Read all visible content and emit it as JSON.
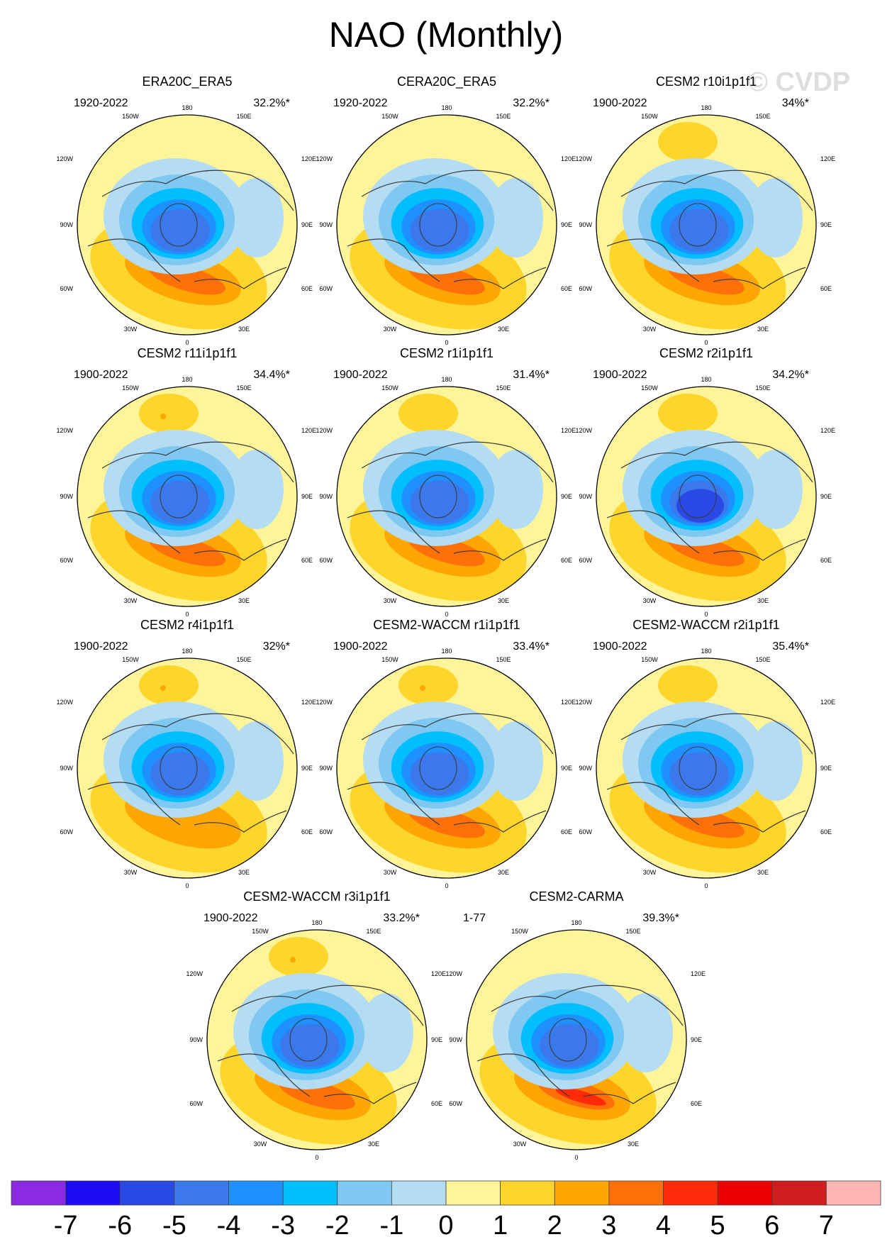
{
  "title": "NAO (Monthly)",
  "watermark": "© CVDP",
  "chart_data": {
    "type": "heatmap",
    "projection": "north-polar-stereographic",
    "variable": "NAO",
    "longitude_labels": [
      "180",
      "150W",
      "150E",
      "120W",
      "120E",
      "90W",
      "90E",
      "60W",
      "60E",
      "30W",
      "30E",
      "0"
    ],
    "panels": [
      {
        "name": "ERA20C_ERA5",
        "years": "1920-2022",
        "pct": "32.2%*",
        "neg_min": -4.6,
        "pos_max": 3.6,
        "pacific_high": 0
      },
      {
        "name": "CERA20C_ERA5",
        "years": "1920-2022",
        "pct": "32.2%*",
        "neg_min": -4.6,
        "pos_max": 3.4,
        "pacific_high": 0
      },
      {
        "name": "CESM2 r10i1p1f1",
        "years": "1900-2022",
        "pct": "34%*",
        "neg_min": -4.7,
        "pos_max": 3.2,
        "pacific_high": 1.4
      },
      {
        "name": "CESM2 r11i1p1f1",
        "years": "1900-2022",
        "pct": "34.4%*",
        "neg_min": -4.7,
        "pos_max": 3.4,
        "pacific_high": 1.7
      },
      {
        "name": "CESM2 r1i1p1f1",
        "years": "1900-2022",
        "pct": "31.4%*",
        "neg_min": -4.6,
        "pos_max": 3.0,
        "pacific_high": 1.4
      },
      {
        "name": "CESM2 r2i1p1f1",
        "years": "1900-2022",
        "pct": "34.2%*",
        "neg_min": -5.3,
        "pos_max": 3.0,
        "pacific_high": 1.4
      },
      {
        "name": "CESM2 r4i1p1f1",
        "years": "1900-2022",
        "pct": "32%*",
        "neg_min": -4.8,
        "pos_max": 2.9,
        "pacific_high": 1.7
      },
      {
        "name": "CESM2-WACCM r1i1p1f1",
        "years": "1900-2022",
        "pct": "33.4%*",
        "neg_min": -4.8,
        "pos_max": 3.1,
        "pacific_high": 1.7
      },
      {
        "name": "CESM2-WACCM r2i1p1f1",
        "years": "1900-2022",
        "pct": "35.4%*",
        "neg_min": -4.7,
        "pos_max": 3.2,
        "pacific_high": 1.4
      },
      {
        "name": "CESM2-WACCM r3i1p1f1",
        "years": "1900-2022",
        "pct": "33.2%*",
        "neg_min": -4.6,
        "pos_max": 3.1,
        "pacific_high": 1.6
      },
      {
        "name": "CESM2-CARMA",
        "years": "1-77",
        "pct": "39.3%*",
        "neg_min": -4.9,
        "pos_max": 4.4,
        "pacific_high": 0
      }
    ],
    "colorbar": {
      "levels": [
        -7,
        -6,
        -5,
        -4,
        -3,
        -2,
        -1,
        0,
        1,
        2,
        3,
        4,
        5,
        6,
        7
      ],
      "labels": [
        "-7",
        "-6",
        "-5",
        "-4",
        "-3",
        "-2",
        "-1",
        "0",
        "1",
        "2",
        "3",
        "4",
        "5",
        "6",
        "7"
      ],
      "colors": [
        "#8a2be2",
        "#1c0cf5",
        "#2a48e6",
        "#3a78ec",
        "#1e90ff",
        "#00bfff",
        "#7ec8f2",
        "#b4ddf3",
        "#fef59b",
        "#fed52b",
        "#fea704",
        "#ff7009",
        "#ff2a08",
        "#ec0103",
        "#cf1c1c",
        "#ffb6b6"
      ]
    }
  },
  "colors": {
    "coastline": "#3a3a3a",
    "frame": "#000000"
  }
}
